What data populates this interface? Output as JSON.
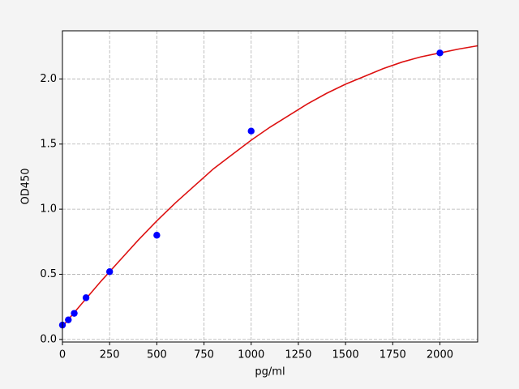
{
  "chart_data": {
    "type": "scatter",
    "x_label": "pg/ml",
    "y_label": "OD450",
    "xlim": [
      0,
      2200
    ],
    "ylim": [
      -0.02,
      2.37
    ],
    "xticks": [
      0,
      250,
      500,
      750,
      1000,
      1250,
      1500,
      1750,
      2000
    ],
    "yticks": [
      {
        "value": 0,
        "label": "0.0"
      },
      0.5,
      {
        "value": 1,
        "label": "1.0"
      },
      1.5,
      {
        "value": 2,
        "label": "2.0"
      }
    ],
    "grid": true,
    "points": {
      "color": "#0000ff",
      "x": [
        0,
        31.25,
        62.5,
        125,
        250,
        500,
        1000,
        2000
      ],
      "y": [
        0.11,
        0.15,
        0.2,
        0.32,
        0.52,
        0.8,
        1.6,
        2.2
      ]
    },
    "curve": {
      "color": "#dd1111",
      "x": [
        0,
        100,
        200,
        300,
        400,
        500,
        600,
        700,
        800,
        900,
        1000,
        1100,
        1200,
        1300,
        1400,
        1500,
        1600,
        1700,
        1800,
        1900,
        2000,
        2100,
        2200
      ],
      "y": [
        0.1,
        0.27,
        0.44,
        0.6,
        0.76,
        0.91,
        1.05,
        1.18,
        1.31,
        1.42,
        1.53,
        1.63,
        1.72,
        1.81,
        1.89,
        1.96,
        2.02,
        2.08,
        2.13,
        2.17,
        2.2,
        2.23,
        2.255
      ]
    }
  }
}
